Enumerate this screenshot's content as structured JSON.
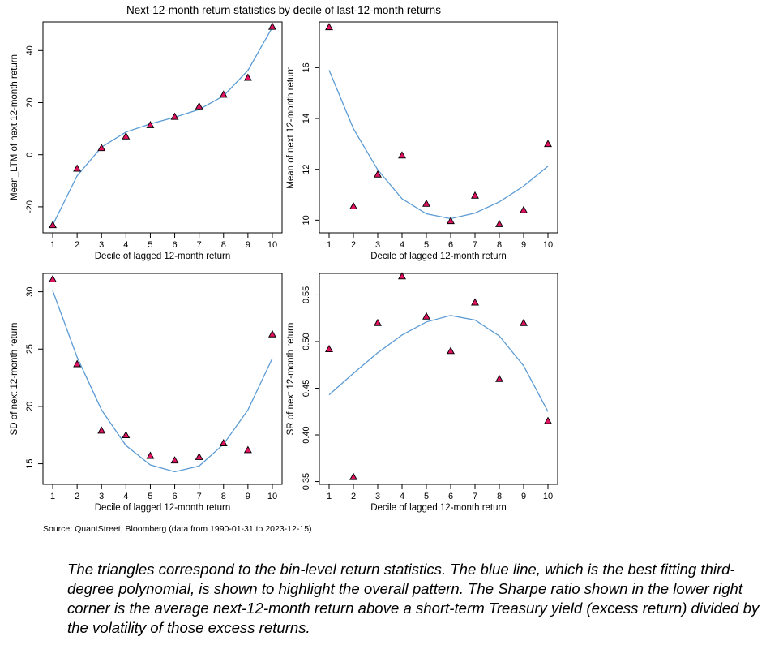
{
  "figure": {
    "title": "Next-12-month return statistics by decile of last-12-month returns",
    "source": "Source: QuantStreet, Bloomberg (data from 1990-01-31 to 2023-12-15)",
    "caption": "The triangles correspond to the bin-level return statistics. The blue line, which is the best fitting third-degree polynomial, is shown to highlight the overall pattern. The Sharpe ratio shown in the lower right corner is the average next-12-month return above a short-term Treasury yield (excess return) divided by the volatility of those excess returns.",
    "colors": {
      "fit_line": "#5b9bd5",
      "triangle_fill": "#e0115f",
      "triangle_edge": "#000000",
      "axes": "#000000"
    }
  },
  "chart_data": [
    {
      "type": "scatter",
      "panel": "top-left",
      "xlabel": "Decile of lagged 12-month return",
      "ylabel": "Mean_LTM of next 12-month return",
      "x": [
        1,
        2,
        3,
        4,
        5,
        6,
        7,
        8,
        9,
        10
      ],
      "xticks": [
        "1",
        "2",
        "3",
        "4",
        "5",
        "6",
        "7",
        "8",
        "9",
        "10"
      ],
      "ylim": [
        -30,
        51
      ],
      "yticks": [
        -20,
        0,
        20,
        40
      ],
      "ytick_labels": [
        "-20",
        "0",
        "20",
        "40"
      ],
      "points": [
        -27,
        -5.3,
        2.6,
        7.1,
        11.4,
        14.6,
        18.6,
        23.1,
        29.6,
        49.2
      ],
      "fit": [
        -27.0,
        -8.1,
        2.9,
        8.7,
        11.8,
        14.4,
        17.4,
        22.6,
        32.4,
        48.9
      ]
    },
    {
      "type": "scatter",
      "panel": "top-right",
      "xlabel": "Decile of lagged 12-month return",
      "ylabel": "Mean of next 12-month return",
      "x": [
        1,
        2,
        3,
        4,
        5,
        6,
        7,
        8,
        9,
        10
      ],
      "xticks": [
        "1",
        "2",
        "3",
        "4",
        "5",
        "6",
        "7",
        "8",
        "9",
        "10"
      ],
      "ylim": [
        9.5,
        17.8
      ],
      "yticks": [
        10,
        12,
        14,
        16
      ],
      "ytick_labels": [
        "10",
        "12",
        "14",
        "16"
      ],
      "points": [
        17.6,
        10.55,
        11.8,
        12.55,
        10.65,
        9.97,
        10.97,
        9.85,
        10.4,
        13.0
      ],
      "fit": [
        15.9,
        13.6,
        11.98,
        10.84,
        10.25,
        10.06,
        10.28,
        10.72,
        11.34,
        12.12
      ]
    },
    {
      "type": "scatter",
      "panel": "bottom-left",
      "xlabel": "Decile of lagged 12-month return",
      "ylabel": "SD of next 12-month return",
      "x": [
        1,
        2,
        3,
        4,
        5,
        6,
        7,
        8,
        9,
        10
      ],
      "xticks": [
        "1",
        "2",
        "3",
        "4",
        "5",
        "6",
        "7",
        "8",
        "9",
        "10"
      ],
      "ylim": [
        13.2,
        31.6
      ],
      "yticks": [
        15,
        20,
        25,
        30
      ],
      "ytick_labels": [
        "15",
        "20",
        "25",
        "30"
      ],
      "points": [
        31.1,
        23.7,
        17.9,
        17.5,
        15.7,
        15.3,
        15.6,
        16.8,
        16.2,
        26.3
      ],
      "fit": [
        30.1,
        24.3,
        19.7,
        16.6,
        14.9,
        14.3,
        14.8,
        16.7,
        19.7,
        24.2
      ]
    },
    {
      "type": "scatter",
      "panel": "bottom-right",
      "xlabel": "Decile of lagged 12-month return",
      "ylabel": "SR of next 12-month return",
      "x": [
        1,
        2,
        3,
        4,
        5,
        6,
        7,
        8,
        9,
        10
      ],
      "xticks": [
        "1",
        "2",
        "3",
        "4",
        "5",
        "6",
        "7",
        "8",
        "9",
        "10"
      ],
      "ylim": [
        0.347,
        0.573
      ],
      "yticks": [
        0.35,
        0.4,
        0.45,
        0.5,
        0.55
      ],
      "ytick_labels": [
        "0.35",
        "0.40",
        "0.45",
        "0.50",
        "0.55"
      ],
      "points": [
        0.492,
        0.355,
        0.52,
        0.57,
        0.527,
        0.49,
        0.542,
        0.46,
        0.52,
        0.415
      ],
      "fit": [
        0.443,
        0.466,
        0.488,
        0.507,
        0.521,
        0.528,
        0.523,
        0.506,
        0.474,
        0.425
      ]
    }
  ]
}
